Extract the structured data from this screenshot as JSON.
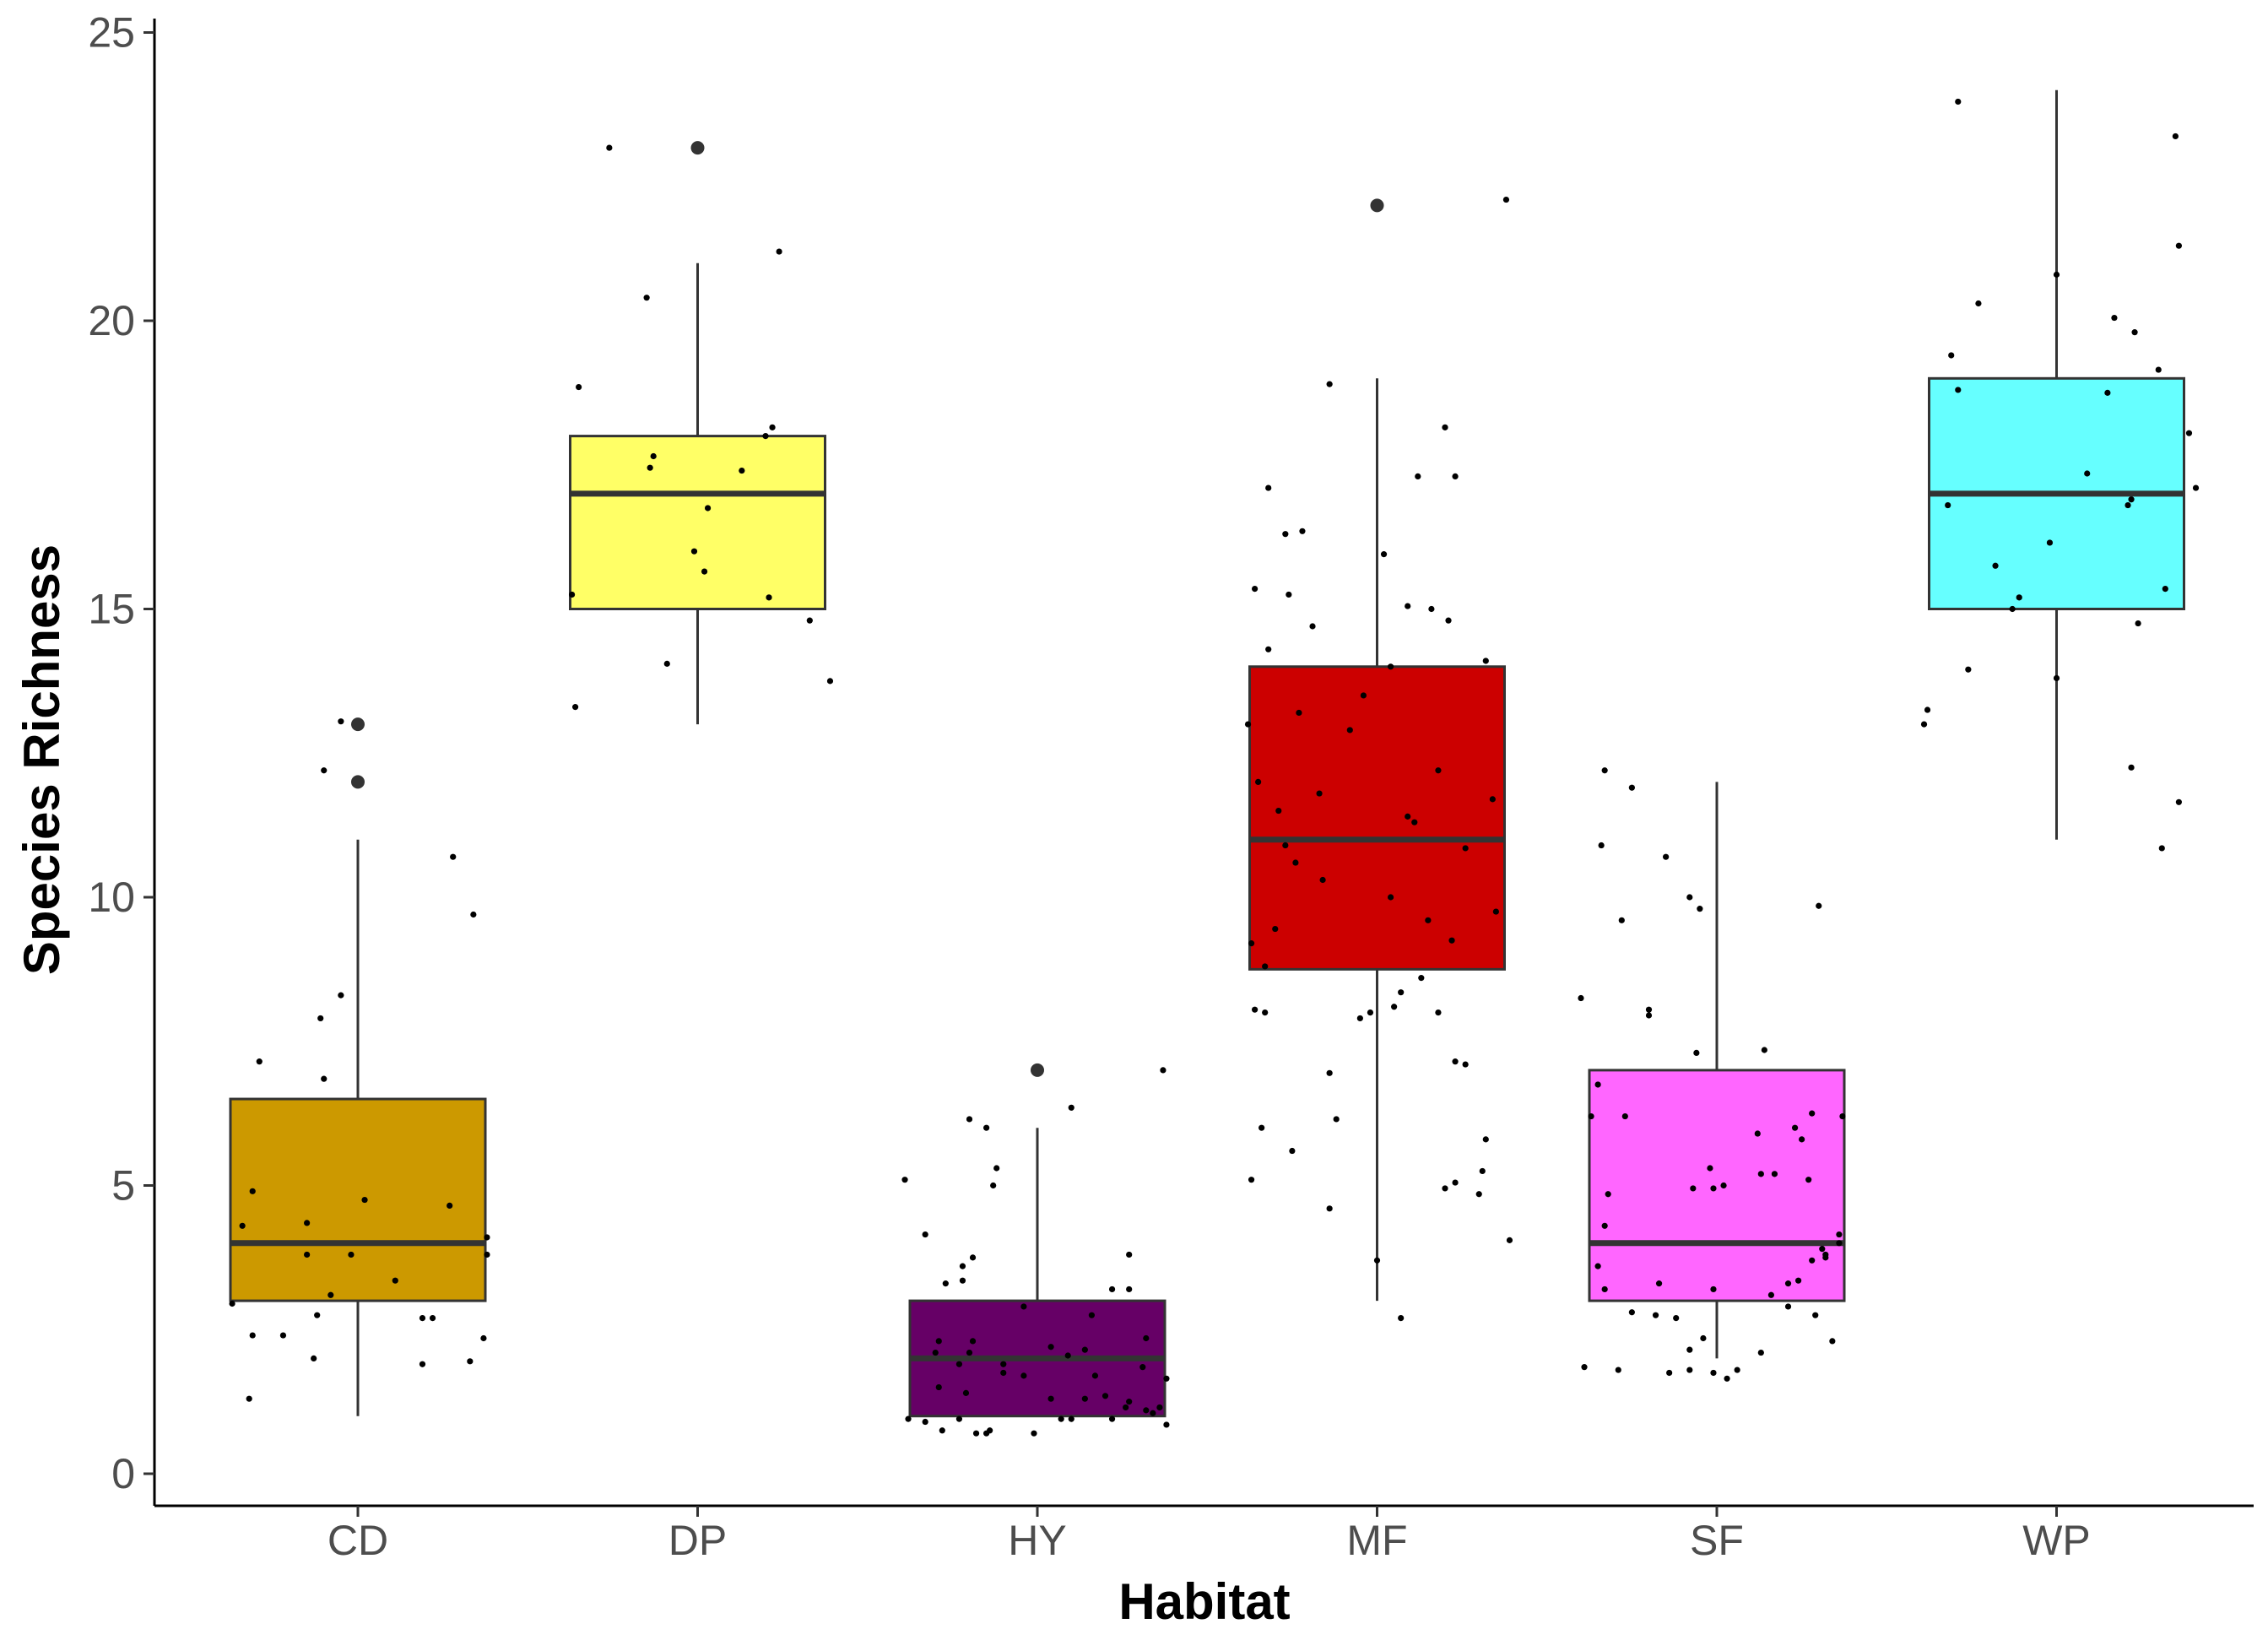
{
  "chart_data": {
    "type": "boxplot",
    "title": "",
    "xlabel": "Habitat",
    "ylabel": "Species Richness",
    "ylim": [
      -0.5,
      25
    ],
    "yticks": [
      0,
      5,
      10,
      15,
      20,
      25
    ],
    "grid": false,
    "legend": "none",
    "categories": [
      "CD",
      "DP",
      "HY",
      "MF",
      "SF",
      "WP"
    ],
    "boxes": [
      {
        "name": "CD",
        "color": "#cc9900",
        "q1": 3,
        "median": 4,
        "q3": 6.5,
        "whisker_low": 1,
        "whisker_high": 11,
        "outliers": [
          12,
          13
        ]
      },
      {
        "name": "DP",
        "color": "#ffff66",
        "q1": 15,
        "median": 17,
        "q3": 18,
        "whisker_low": 13,
        "whisker_high": 21,
        "outliers": [
          23
        ]
      },
      {
        "name": "HY",
        "color": "#660066",
        "q1": 1,
        "median": 2,
        "q3": 3,
        "whisker_low": 1,
        "whisker_high": 6,
        "outliers": [
          7
        ]
      },
      {
        "name": "MF",
        "color": "#cc0000",
        "q1": 8.75,
        "median": 11,
        "q3": 14,
        "whisker_low": 3,
        "whisker_high": 19,
        "outliers": [
          22
        ]
      },
      {
        "name": "SF",
        "color": "#ff66ff",
        "q1": 3,
        "median": 4,
        "q3": 7,
        "whisker_low": 2,
        "whisker_high": 12,
        "outliers": []
      },
      {
        "name": "WP",
        "color": "#66ffff",
        "q1": 15,
        "median": 17,
        "q3": 19,
        "whisker_low": 11,
        "whisker_high": 24,
        "outliers": []
      }
    ],
    "jitter_points": {
      "CD": [
        [
          -0.05,
          13.05
        ],
        [
          -0.1,
          12.2
        ],
        [
          -0.05,
          8.3
        ],
        [
          -0.11,
          7.9
        ],
        [
          -0.1,
          6.85
        ],
        [
          -0.29,
          7.15
        ],
        [
          0.28,
          10.7
        ],
        [
          0.34,
          9.7
        ],
        [
          -0.31,
          4.9
        ],
        [
          -0.34,
          4.3
        ],
        [
          -0.15,
          4.35
        ],
        [
          0.02,
          4.75
        ],
        [
          -0.02,
          3.8
        ],
        [
          -0.15,
          3.8
        ],
        [
          -0.08,
          3.1
        ],
        [
          0.11,
          3.35
        ],
        [
          0.27,
          4.65
        ],
        [
          0.38,
          4.1
        ],
        [
          0.38,
          3.8
        ],
        [
          -0.37,
          2.95
        ],
        [
          -0.31,
          2.4
        ],
        [
          -0.22,
          2.4
        ],
        [
          -0.12,
          2.75
        ],
        [
          0.19,
          2.7
        ],
        [
          0.22,
          2.7
        ],
        [
          0.37,
          2.35
        ],
        [
          -0.13,
          2.0
        ],
        [
          0.19,
          1.9
        ],
        [
          0.33,
          1.95
        ],
        [
          -0.32,
          1.3
        ]
      ],
      "DP": [
        [
          -0.26,
          23.0
        ],
        [
          0.24,
          21.2
        ],
        [
          -0.15,
          20.4
        ],
        [
          -0.35,
          18.85
        ],
        [
          0.22,
          18.15
        ],
        [
          0.2,
          18.0
        ],
        [
          -0.13,
          17.65
        ],
        [
          -0.14,
          17.45
        ],
        [
          0.13,
          17.4
        ],
        [
          0.03,
          16.75
        ],
        [
          -0.01,
          16.0
        ],
        [
          0.02,
          15.65
        ],
        [
          -0.37,
          15.25
        ],
        [
          0.21,
          15.2
        ],
        [
          0.33,
          14.8
        ],
        [
          -0.09,
          14.05
        ],
        [
          0.39,
          13.75
        ],
        [
          -0.36,
          13.3
        ]
      ],
      "HY": [
        [
          -0.39,
          5.1
        ],
        [
          0.1,
          6.35
        ],
        [
          -0.2,
          6.15
        ],
        [
          -0.15,
          6.0
        ],
        [
          -0.12,
          5.3
        ],
        [
          -0.13,
          5.0
        ],
        [
          0.37,
          7.0
        ],
        [
          -0.33,
          4.15
        ],
        [
          -0.22,
          3.6
        ],
        [
          -0.19,
          3.75
        ],
        [
          0.27,
          3.8
        ],
        [
          -0.27,
          3.3
        ],
        [
          -0.22,
          3.35
        ],
        [
          -0.04,
          2.9
        ],
        [
          0.27,
          3.2
        ],
        [
          0.22,
          3.2
        ],
        [
          0.16,
          2.75
        ],
        [
          -0.29,
          2.3
        ],
        [
          -0.19,
          2.3
        ],
        [
          -0.3,
          2.1
        ],
        [
          -0.2,
          2.1
        ],
        [
          0.04,
          2.2
        ],
        [
          0.14,
          2.15
        ],
        [
          0.32,
          2.35
        ],
        [
          -0.23,
          1.9
        ],
        [
          -0.1,
          1.9
        ],
        [
          0.09,
          2.05
        ],
        [
          -0.29,
          1.5
        ],
        [
          -0.21,
          1.4
        ],
        [
          -0.1,
          1.75
        ],
        [
          -0.04,
          1.7
        ],
        [
          0.17,
          1.7
        ],
        [
          0.31,
          1.85
        ],
        [
          0.38,
          1.65
        ],
        [
          0.04,
          1.3
        ],
        [
          0.14,
          1.3
        ],
        [
          0.2,
          1.35
        ],
        [
          0.26,
          1.15
        ],
        [
          0.27,
          1.25
        ],
        [
          0.32,
          1.1
        ],
        [
          0.36,
          1.15
        ],
        [
          -0.38,
          0.95
        ],
        [
          -0.33,
          0.9
        ],
        [
          -0.23,
          0.95
        ],
        [
          -0.15,
          0.7
        ],
        [
          -0.14,
          0.75
        ],
        [
          0.07,
          0.95
        ],
        [
          0.1,
          0.95
        ],
        [
          0.22,
          0.95
        ],
        [
          0.34,
          1.05
        ],
        [
          0.38,
          0.85
        ],
        [
          -0.28,
          0.75
        ],
        [
          -0.18,
          0.7
        ],
        [
          -0.01,
          0.7
        ]
      ],
      "MF": [
        [
          0.38,
          22.1
        ],
        [
          -0.14,
          18.9
        ],
        [
          0.2,
          18.15
        ],
        [
          -0.32,
          17.1
        ],
        [
          -0.27,
          16.3
        ],
        [
          -0.22,
          16.35
        ],
        [
          0.02,
          15.95
        ],
        [
          0.09,
          15.05
        ],
        [
          0.16,
          15.0
        ],
        [
          0.21,
          14.8
        ],
        [
          -0.36,
          15.35
        ],
        [
          -0.32,
          14.3
        ],
        [
          -0.26,
          15.25
        ],
        [
          0.04,
          14.0
        ],
        [
          -0.19,
          14.7
        ],
        [
          0.32,
          14.1
        ],
        [
          -0.38,
          13.0
        ],
        [
          -0.08,
          12.9
        ],
        [
          -0.23,
          13.2
        ],
        [
          0.34,
          11.7
        ],
        [
          -0.35,
          12.0
        ],
        [
          -0.29,
          11.5
        ],
        [
          0.09,
          11.4
        ],
        [
          0.11,
          11.3
        ],
        [
          0.26,
          10.85
        ],
        [
          -0.27,
          10.9
        ],
        [
          -0.24,
          10.6
        ],
        [
          -0.16,
          10.3
        ],
        [
          0.04,
          10.0
        ],
        [
          -0.3,
          9.45
        ],
        [
          -0.37,
          9.2
        ],
        [
          -0.33,
          8.8
        ],
        [
          0.15,
          9.6
        ],
        [
          0.22,
          9.25
        ],
        [
          0.35,
          9.75
        ],
        [
          0.13,
          8.6
        ],
        [
          0.07,
          8.35
        ],
        [
          -0.36,
          8.05
        ],
        [
          -0.33,
          8.0
        ],
        [
          -0.02,
          8.0
        ],
        [
          0.05,
          8.1
        ],
        [
          0.18,
          8.0
        ],
        [
          -0.05,
          7.9
        ],
        [
          0.23,
          7.15
        ],
        [
          0.26,
          7.1
        ],
        [
          -0.14,
          6.95
        ],
        [
          -0.12,
          6.15
        ],
        [
          -0.34,
          6.0
        ],
        [
          -0.25,
          5.6
        ],
        [
          0.32,
          5.8
        ],
        [
          -0.37,
          5.1
        ],
        [
          0.2,
          4.95
        ],
        [
          0.23,
          5.05
        ],
        [
          0.3,
          4.85
        ],
        [
          0.31,
          5.25
        ],
        [
          -0.14,
          4.6
        ],
        [
          0.39,
          4.05
        ],
        [
          0.0,
          3.7
        ],
        [
          0.07,
          2.7
        ],
        [
          0.12,
          17.3
        ],
        [
          0.23,
          17.3
        ],
        [
          -0.04,
          13.5
        ],
        [
          0.18,
          12.2
        ],
        [
          -0.17,
          11.8
        ]
      ],
      "SF": [
        [
          -0.33,
          12.2
        ],
        [
          -0.25,
          11.9
        ],
        [
          -0.34,
          10.9
        ],
        [
          -0.15,
          10.7
        ],
        [
          -0.28,
          9.6
        ],
        [
          -0.08,
          10.0
        ],
        [
          -0.05,
          9.8
        ],
        [
          0.3,
          9.85
        ],
        [
          -0.4,
          8.25
        ],
        [
          -0.2,
          8.05
        ],
        [
          -0.2,
          7.95
        ],
        [
          0.14,
          7.35
        ],
        [
          -0.06,
          7.3
        ],
        [
          -0.35,
          6.75
        ],
        [
          0.37,
          6.2
        ],
        [
          -0.37,
          6.2
        ],
        [
          0.28,
          6.25
        ],
        [
          0.23,
          6.0
        ],
        [
          0.25,
          5.8
        ],
        [
          0.12,
          5.9
        ],
        [
          0.13,
          5.2
        ],
        [
          0.27,
          5.1
        ],
        [
          0.17,
          5.2
        ],
        [
          -0.27,
          6.2
        ],
        [
          -0.02,
          5.3
        ],
        [
          -0.07,
          4.95
        ],
        [
          -0.01,
          4.95
        ],
        [
          0.02,
          5.0
        ],
        [
          -0.32,
          4.85
        ],
        [
          -0.33,
          4.3
        ],
        [
          0.36,
          4.15
        ],
        [
          0.36,
          4.0
        ],
        [
          0.31,
          3.9
        ],
        [
          0.32,
          3.8
        ],
        [
          0.28,
          3.7
        ],
        [
          0.32,
          3.75
        ],
        [
          -0.33,
          3.2
        ],
        [
          0.21,
          3.3
        ],
        [
          0.24,
          3.35
        ],
        [
          0.16,
          3.1
        ],
        [
          -0.01,
          3.2
        ],
        [
          -0.35,
          3.6
        ],
        [
          -0.25,
          2.8
        ],
        [
          -0.18,
          2.75
        ],
        [
          -0.12,
          2.7
        ],
        [
          -0.17,
          3.3
        ],
        [
          0.21,
          2.9
        ],
        [
          0.29,
          2.75
        ],
        [
          0.34,
          2.3
        ],
        [
          -0.04,
          2.35
        ],
        [
          -0.08,
          2.15
        ],
        [
          0.13,
          2.1
        ],
        [
          -0.39,
          1.85
        ],
        [
          -0.29,
          1.8
        ],
        [
          -0.14,
          1.75
        ],
        [
          -0.01,
          1.75
        ],
        [
          0.03,
          1.65
        ],
        [
          0.06,
          1.8
        ],
        [
          -0.08,
          1.8
        ]
      ],
      "WP": [
        [
          -0.29,
          23.8
        ],
        [
          0.35,
          23.2
        ],
        [
          0.36,
          21.3
        ],
        [
          0.0,
          20.8
        ],
        [
          0.17,
          20.05
        ],
        [
          -0.23,
          20.3
        ],
        [
          0.23,
          19.8
        ],
        [
          -0.31,
          19.4
        ],
        [
          0.3,
          19.15
        ],
        [
          0.39,
          18.05
        ],
        [
          -0.29,
          18.8
        ],
        [
          0.15,
          18.75
        ],
        [
          0.41,
          17.1
        ],
        [
          -0.32,
          16.8
        ],
        [
          0.21,
          16.8
        ],
        [
          0.22,
          16.9
        ],
        [
          0.09,
          17.35
        ],
        [
          -0.18,
          15.75
        ],
        [
          0.32,
          15.35
        ],
        [
          -0.13,
          15.0
        ],
        [
          -0.11,
          15.2
        ],
        [
          -0.02,
          16.15
        ],
        [
          0.24,
          14.75
        ],
        [
          -0.26,
          13.95
        ],
        [
          0.0,
          13.8
        ],
        [
          -0.39,
          13.0
        ],
        [
          -0.38,
          13.25
        ],
        [
          0.22,
          12.25
        ],
        [
          0.36,
          11.65
        ],
        [
          0.31,
          10.85
        ]
      ]
    }
  }
}
